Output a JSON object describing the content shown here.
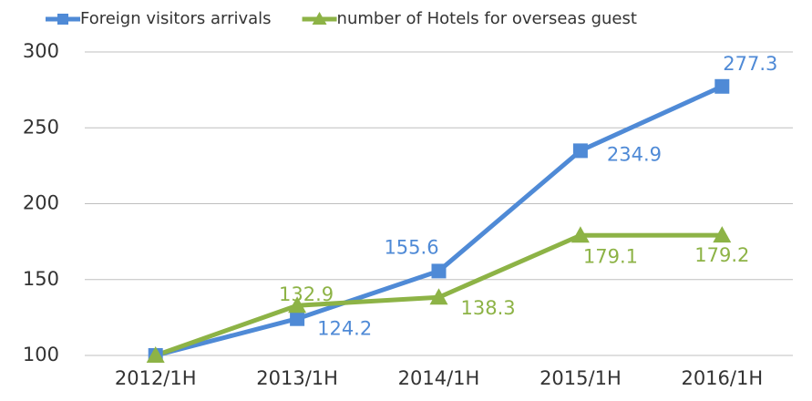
{
  "chart_data": {
    "type": "line",
    "categories": [
      "2012/1H",
      "2013/1H",
      "2014/1H",
      "2015/1H",
      "2016/1H"
    ],
    "series": [
      {
        "name": "Foreign visitors arrivals",
        "color": "#4f8ad6",
        "marker": "square",
        "values": [
          100,
          124.2,
          155.6,
          234.9,
          277.3
        ],
        "value_labels": [
          null,
          "124.2",
          "155.6",
          "234.9",
          "277.3"
        ]
      },
      {
        "name": "number of Hotels for overseas guest",
        "color": "#8db346",
        "marker": "triangle",
        "values": [
          100,
          132.9,
          138.3,
          179.1,
          179.2
        ],
        "value_labels": [
          null,
          "132.9",
          "138.3",
          "179.1",
          "179.2"
        ]
      }
    ],
    "ylim": [
      100,
      300
    ],
    "yticks": [
      100,
      150,
      200,
      250,
      300
    ],
    "grid": true,
    "legend": "top"
  }
}
